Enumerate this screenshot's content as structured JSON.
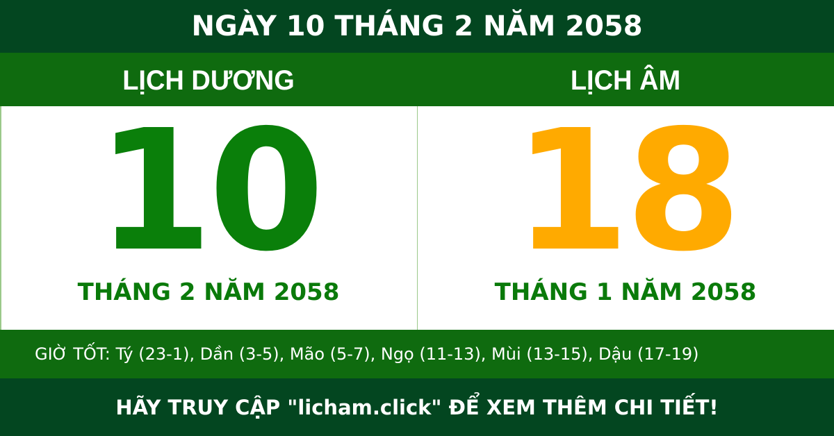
{
  "title": "NGÀY 10 THÁNG 2 NĂM 2058",
  "solar": {
    "heading": "LỊCH DƯƠNG",
    "day": "10",
    "month_year": "THÁNG 2 NĂM 2058",
    "color": "#0a7f0a"
  },
  "lunar": {
    "heading": "LỊCH ÂM",
    "day": "18",
    "month_year": "THÁNG 1 NĂM 2058",
    "color": "#ffaa00"
  },
  "good_hours": "GIỜ TỐT: Tý (23-1), Dần (3-5), Mão (5-7), Ngọ (11-13), Mùi (13-15), Dậu (17-19)",
  "footer": "HÃY TRUY CẬP \"licham.click\" ĐỂ XEM THÊM CHI TIẾT!",
  "colors": {
    "dark_green": "#034620",
    "band_green": "#0f6b0f"
  }
}
